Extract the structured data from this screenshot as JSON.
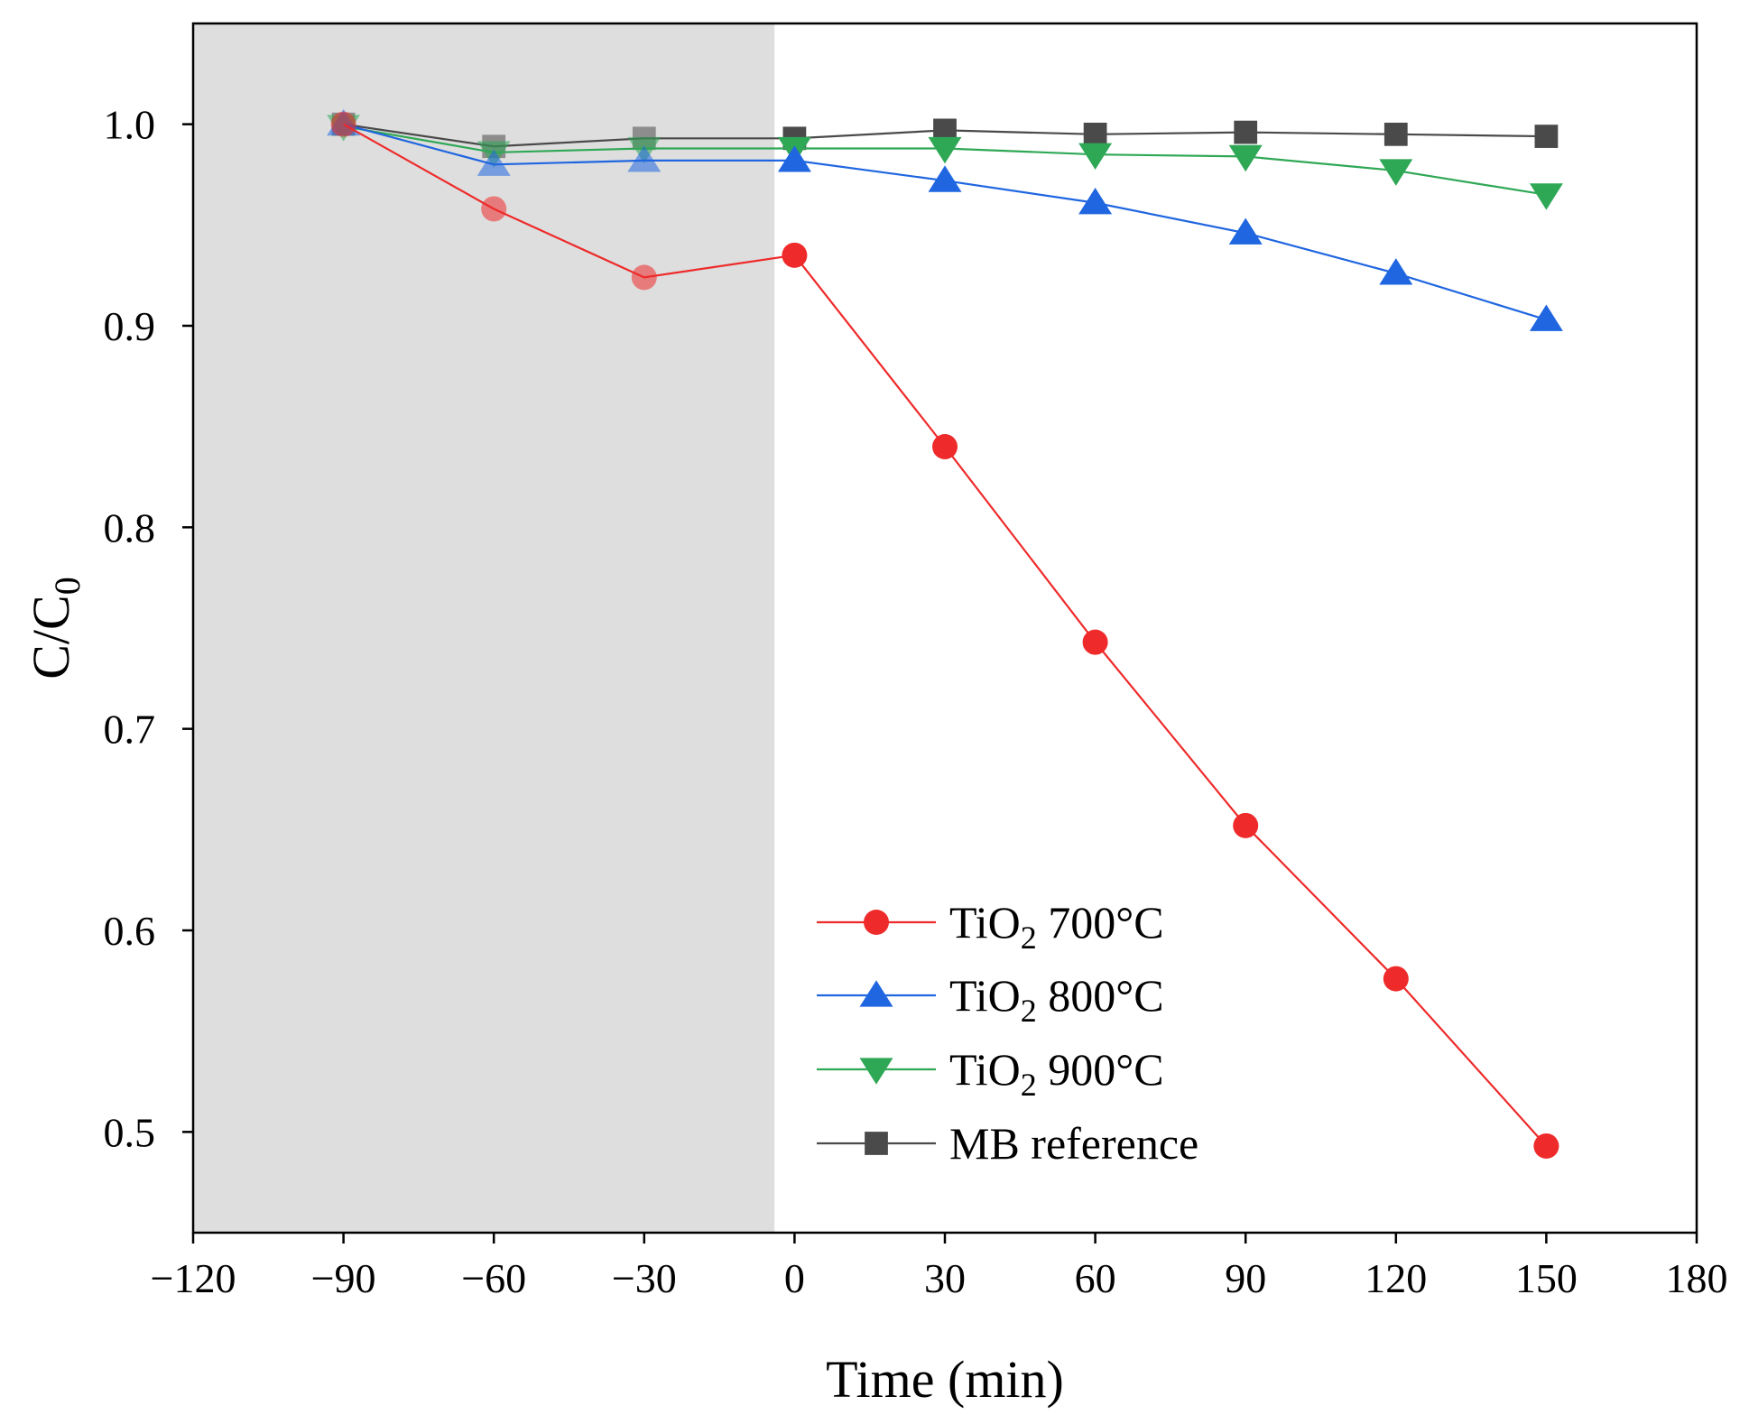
{
  "chart_data": {
    "type": "line",
    "title": "",
    "xlabel": "Time (min)",
    "ylabel": {
      "base": "C/C",
      "sub": "0"
    },
    "xlim": [
      -120,
      180
    ],
    "ylim": [
      0.45,
      1.05
    ],
    "xticks": [
      -120,
      -90,
      -60,
      -30,
      0,
      30,
      60,
      90,
      120,
      150,
      180
    ],
    "xtick_labels": [
      "−120",
      "−90",
      "−60",
      "−30",
      "0",
      "30",
      "60",
      "90",
      "120",
      "150",
      "180"
    ],
    "yticks": [
      0.5,
      0.6,
      0.7,
      0.8,
      0.9,
      1.0
    ],
    "ytick_labels": [
      "0.5",
      "0.6",
      "0.7",
      "0.8",
      "0.9",
      "1.0"
    ],
    "shaded_region": {
      "x_from": -120,
      "x_to": -4,
      "color": "#dedede",
      "meaning": "dark"
    },
    "grid": false,
    "legend_position": "lower-center",
    "x": [
      -90,
      -60,
      -30,
      0,
      30,
      60,
      90,
      120,
      150
    ],
    "series": [
      {
        "name": "TiO2 700°C",
        "label": {
          "pre": "TiO",
          "sub": "2",
          "post": " 700°C"
        },
        "color": "#ee2a2a",
        "marker": "circle",
        "values": [
          1.0,
          0.958,
          0.924,
          0.935,
          0.84,
          0.743,
          0.652,
          0.576,
          0.493
        ]
      },
      {
        "name": "TiO2 800°C",
        "label": {
          "pre": "TiO",
          "sub": "2",
          "post": " 800°C"
        },
        "color": "#1f66e0",
        "marker": "triangle-up",
        "values": [
          1.0,
          0.98,
          0.982,
          0.982,
          0.972,
          0.961,
          0.946,
          0.926,
          0.903
        ]
      },
      {
        "name": "TiO2 900°C",
        "label": {
          "pre": "TiO",
          "sub": "2",
          "post": " 900°C"
        },
        "color": "#2fa856",
        "marker": "triangle-down",
        "values": [
          0.999,
          0.986,
          0.988,
          0.988,
          0.988,
          0.985,
          0.984,
          0.977,
          0.965
        ]
      },
      {
        "name": "MB reference",
        "label": {
          "pre": "MB reference",
          "sub": "",
          "post": ""
        },
        "color": "#4a4a4a",
        "marker": "square",
        "values": [
          1.0,
          0.989,
          0.993,
          0.993,
          0.997,
          0.995,
          0.996,
          0.995,
          0.994
        ]
      }
    ]
  }
}
